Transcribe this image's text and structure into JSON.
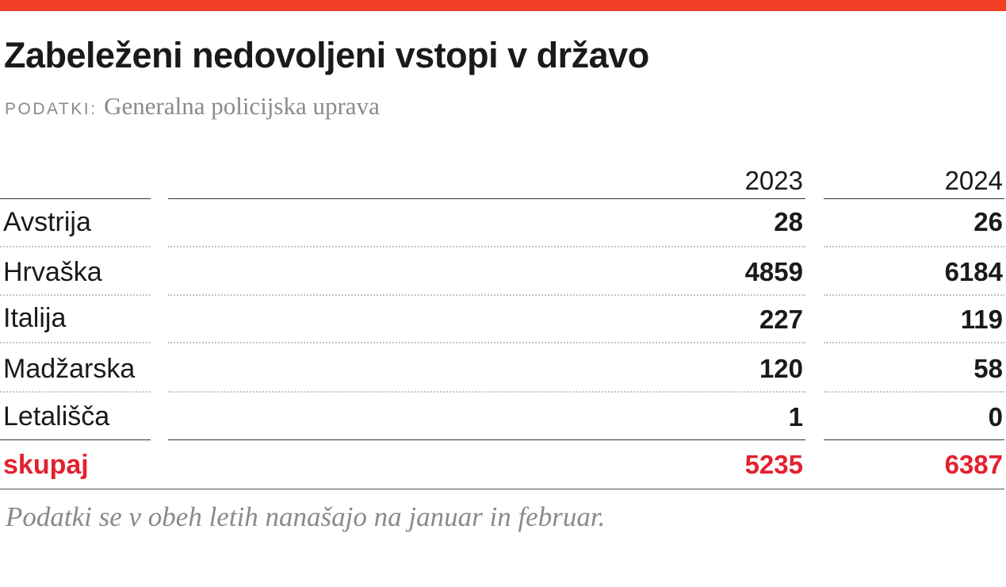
{
  "colors": {
    "accent_bar": "#ef3e23",
    "total": "#e3212f",
    "text": "#1a1a1a",
    "muted": "#8a8a8a"
  },
  "header": {
    "title": "Zabeleženi nedovoljeni vstopi v državo",
    "source_label": "PODATKI:",
    "source_text": "Generalna policijska uprava"
  },
  "chart_data": {
    "type": "table",
    "title": "Zabeleženi nedovoljeni vstopi v državo",
    "columns": [
      "2023",
      "2024"
    ],
    "rows": [
      {
        "label": "Avstrija",
        "values": [
          "28",
          "26"
        ]
      },
      {
        "label": "Hrvaška",
        "values": [
          "4859",
          "6184"
        ]
      },
      {
        "label": "Italija",
        "values": [
          "227",
          "119"
        ]
      },
      {
        "label": "Madžarska",
        "values": [
          "120",
          "58"
        ]
      },
      {
        "label": "Letališča",
        "values": [
          "1",
          "0"
        ]
      }
    ],
    "total": {
      "label": "skupaj",
      "values": [
        "5235",
        "6387"
      ]
    }
  },
  "footer": {
    "note": "Podatki se v obeh letih nanašajo na januar in februar."
  }
}
